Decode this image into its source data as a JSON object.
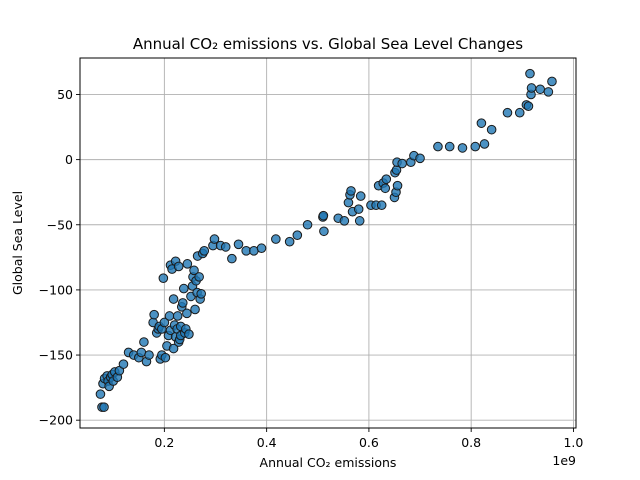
{
  "chart_data": {
    "type": "scatter",
    "title": "Annual CO₂ emissions vs. Global Sea Level Changes",
    "xlabel": "Annual CO₂ emissions",
    "ylabel": "Global Sea Level",
    "x_offset_label": "1e9",
    "xlim": [
      35000000.0,
      1005000000.0
    ],
    "ylim": [
      -206,
      78
    ],
    "x_ticks": [
      200000000.0,
      400000000.0,
      600000000.0,
      800000000.0,
      1000000000.0
    ],
    "x_tick_labels": [
      "0.2",
      "0.4",
      "0.6",
      "0.8",
      "1.0"
    ],
    "y_ticks": [
      -200,
      -150,
      -100,
      -50,
      0,
      50
    ],
    "y_tick_labels": [
      "−200",
      "−150",
      "−100",
      "−50",
      "0",
      "50"
    ],
    "grid": true,
    "colors": {
      "marker_fill": "#1f77b4",
      "marker_edge": "#1a1a1a"
    },
    "points": [
      [
        78000000.0,
        -190
      ],
      [
        82000000.0,
        -190
      ],
      [
        75000000.0,
        -180
      ],
      [
        80000000.0,
        -172
      ],
      [
        83000000.0,
        -168
      ],
      [
        88000000.0,
        -166
      ],
      [
        90000000.0,
        -170
      ],
      [
        92000000.0,
        -174
      ],
      [
        95000000.0,
        -167
      ],
      [
        98000000.0,
        -165
      ],
      [
        100000000.0,
        -170
      ],
      [
        103000000.0,
        -163
      ],
      [
        108000000.0,
        -167
      ],
      [
        112000000.0,
        -162
      ],
      [
        120000000.0,
        -157
      ],
      [
        130000000.0,
        -148
      ],
      [
        140000000.0,
        -150
      ],
      [
        150000000.0,
        -152
      ],
      [
        155000000.0,
        -148
      ],
      [
        160000000.0,
        -140
      ],
      [
        165000000.0,
        -155
      ],
      [
        170000000.0,
        -150
      ],
      [
        178000000.0,
        -125
      ],
      [
        180000000.0,
        -119
      ],
      [
        185000000.0,
        -133
      ],
      [
        188000000.0,
        -130
      ],
      [
        190000000.0,
        -128
      ],
      [
        192000000.0,
        -153
      ],
      [
        195000000.0,
        -150
      ],
      [
        195000000.0,
        -130
      ],
      [
        198000000.0,
        -91
      ],
      [
        200000000.0,
        -125
      ],
      [
        202000000.0,
        -152
      ],
      [
        205000000.0,
        -143
      ],
      [
        208000000.0,
        -135
      ],
      [
        210000000.0,
        -120
      ],
      [
        212000000.0,
        -131
      ],
      [
        212000000.0,
        -81
      ],
      [
        215000000.0,
        -84
      ],
      [
        218000000.0,
        -145
      ],
      [
        218000000.0,
        -107
      ],
      [
        220000000.0,
        -127
      ],
      [
        222000000.0,
        -136
      ],
      [
        222000000.0,
        -78
      ],
      [
        225000000.0,
        -130
      ],
      [
        226000000.0,
        -120
      ],
      [
        228000000.0,
        -140
      ],
      [
        228000000.0,
        -82
      ],
      [
        230000000.0,
        -138
      ],
      [
        232000000.0,
        -135
      ],
      [
        232000000.0,
        -128
      ],
      [
        234000000.0,
        -113
      ],
      [
        236000000.0,
        -110
      ],
      [
        238000000.0,
        -99
      ],
      [
        240000000.0,
        -133
      ],
      [
        242000000.0,
        -130
      ],
      [
        244000000.0,
        -118
      ],
      [
        245000000.0,
        -80
      ],
      [
        248000000.0,
        -134
      ],
      [
        252000000.0,
        -105
      ],
      [
        255000000.0,
        -97
      ],
      [
        256000000.0,
        -90
      ],
      [
        258000000.0,
        -85
      ],
      [
        260000000.0,
        -115
      ],
      [
        262000000.0,
        -93
      ],
      [
        264000000.0,
        -102
      ],
      [
        265000000.0,
        -74
      ],
      [
        268000000.0,
        -90
      ],
      [
        270000000.0,
        -107
      ],
      [
        272000000.0,
        -103
      ],
      [
        275000000.0,
        -72
      ],
      [
        278000000.0,
        -70
      ],
      [
        295000000.0,
        -66
      ],
      [
        298000000.0,
        -61
      ],
      [
        310000000.0,
        -66
      ],
      [
        320000000.0,
        -67
      ],
      [
        332000000.0,
        -76
      ],
      [
        345000000.0,
        -65
      ],
      [
        360000000.0,
        -70
      ],
      [
        375000000.0,
        -70
      ],
      [
        390000000.0,
        -68
      ],
      [
        418000000.0,
        -61
      ],
      [
        445000000.0,
        -63
      ],
      [
        460000000.0,
        -58
      ],
      [
        480000000.0,
        -50
      ],
      [
        510000000.0,
        -44
      ],
      [
        511000000.0,
        -43
      ],
      [
        512000000.0,
        -55
      ],
      [
        540000000.0,
        -45
      ],
      [
        552000000.0,
        -47
      ],
      [
        560000000.0,
        -33
      ],
      [
        563000000.0,
        -27
      ],
      [
        565000000.0,
        -24
      ],
      [
        568000000.0,
        -40
      ],
      [
        580000000.0,
        -38
      ],
      [
        582000000.0,
        -47
      ],
      [
        584000000.0,
        -28
      ],
      [
        604000000.0,
        -35
      ],
      [
        614000000.0,
        -35
      ],
      [
        619000000.0,
        -20
      ],
      [
        625000000.0,
        -35
      ],
      [
        628000000.0,
        -18
      ],
      [
        632000000.0,
        -22
      ],
      [
        634000000.0,
        -15
      ],
      [
        650000000.0,
        -29
      ],
      [
        651000000.0,
        -10
      ],
      [
        653000000.0,
        -25
      ],
      [
        654000000.0,
        -8
      ],
      [
        655000000.0,
        -2
      ],
      [
        656000000.0,
        -20
      ],
      [
        665000000.0,
        -3
      ],
      [
        682000000.0,
        -2
      ],
      [
        688000000.0,
        3
      ],
      [
        700000000.0,
        1
      ],
      [
        735000000.0,
        10
      ],
      [
        758000000.0,
        10
      ],
      [
        783000000.0,
        9
      ],
      [
        808000000.0,
        10
      ],
      [
        820000000.0,
        28
      ],
      [
        826000000.0,
        12
      ],
      [
        840000000.0,
        23
      ],
      [
        871000000.0,
        36
      ],
      [
        895000000.0,
        36
      ],
      [
        908000000.0,
        42
      ],
      [
        912000000.0,
        41
      ],
      [
        915000000.0,
        66
      ],
      [
        917000000.0,
        50
      ],
      [
        918000000.0,
        55
      ],
      [
        935000000.0,
        54
      ],
      [
        951000000.0,
        52
      ],
      [
        958000000.0,
        60
      ]
    ]
  }
}
